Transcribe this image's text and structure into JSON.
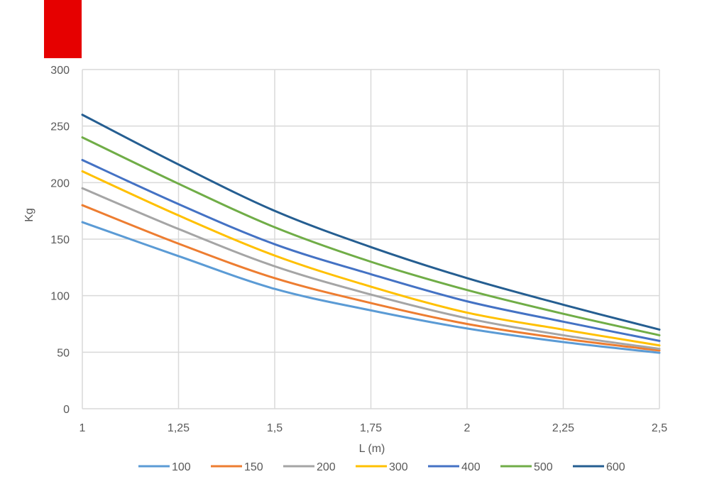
{
  "chart_data": {
    "type": "line",
    "title": "",
    "xlabel": "L (m)",
    "ylabel": "Kg",
    "xlim": [
      1,
      2.5
    ],
    "ylim": [
      0,
      300
    ],
    "grid": true,
    "legend_position": "bottom",
    "x": [
      1,
      1.25,
      1.5,
      1.75,
      2,
      2.25,
      2.5
    ],
    "x_tick_labels": [
      "1",
      "1,25",
      "1,5",
      "1,75",
      "2",
      "2,25",
      "2,5"
    ],
    "y_ticks": [
      0,
      50,
      100,
      150,
      200,
      250,
      300
    ],
    "y_tick_labels": [
      "0",
      "50",
      "100",
      "150",
      "200",
      "250",
      "300"
    ],
    "series": [
      {
        "name": "100",
        "color": "#5b9bd5",
        "values": [
          165,
          135,
          106,
          87,
          71,
          59,
          49.5
        ]
      },
      {
        "name": "150",
        "color": "#ed7d31",
        "values": [
          180,
          146,
          115.5,
          93.5,
          75,
          62,
          51.5
        ]
      },
      {
        "name": "200",
        "color": "#a5a5a5",
        "values": [
          195,
          159,
          126,
          101,
          80,
          65,
          53
        ]
      },
      {
        "name": "300",
        "color": "#ffc000",
        "values": [
          210,
          171,
          135.5,
          108,
          85,
          70,
          56
        ]
      },
      {
        "name": "400",
        "color": "#4472c4",
        "values": [
          220,
          181,
          145.5,
          119,
          95,
          77,
          60
        ]
      },
      {
        "name": "500",
        "color": "#70ad47",
        "values": [
          240,
          199,
          160.5,
          130,
          105,
          84,
          65
        ]
      },
      {
        "name": "600",
        "color": "#255e91",
        "values": [
          260,
          216,
          175,
          143,
          115.5,
          92,
          70
        ]
      }
    ]
  }
}
